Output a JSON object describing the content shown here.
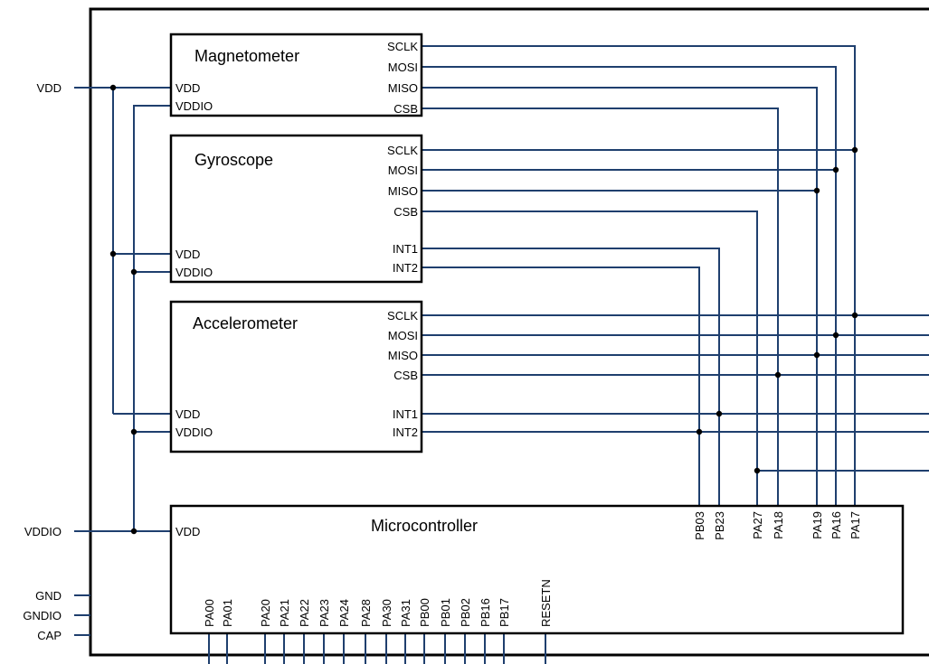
{
  "colors": {
    "wire": "#1f3f6e",
    "border": "#000000",
    "background": "#ffffff"
  },
  "external_pins": {
    "vdd": "VDD",
    "vddio": "VDDIO",
    "gnd": "GND",
    "gndio": "GNDIO",
    "cap": "CAP"
  },
  "magnetometer": {
    "title": "Magnetometer",
    "pins_left": [
      "VDD",
      "VDDIO"
    ],
    "pins_right": [
      "SCLK",
      "MOSI",
      "MISO",
      "CSB"
    ]
  },
  "gyroscope": {
    "title": "Gyroscope",
    "pins_left": [
      "VDD",
      "VDDIO"
    ],
    "pins_right": [
      "SCLK",
      "MOSI",
      "MISO",
      "CSB",
      "INT1",
      "INT2"
    ]
  },
  "accelerometer": {
    "title": "Accelerometer",
    "pins_left": [
      "VDD",
      "VDDIO"
    ],
    "pins_right": [
      "SCLK",
      "MOSI",
      "MISO",
      "CSB",
      "INT1",
      "INT2"
    ]
  },
  "microcontroller": {
    "title": "Microcontroller",
    "vdd_pin": "VDD",
    "top_pins": [
      "PB03",
      "PB23",
      "PA27",
      "PA18",
      "PA19",
      "PA16",
      "PA17"
    ],
    "bottom_pins": [
      "PA00",
      "PA01",
      "PA20",
      "PA21",
      "PA22",
      "PA23",
      "PA24",
      "PA28",
      "PA30",
      "PA31",
      "PB00",
      "PB01",
      "PB02",
      "PB16",
      "PB17",
      "RESETN"
    ]
  }
}
